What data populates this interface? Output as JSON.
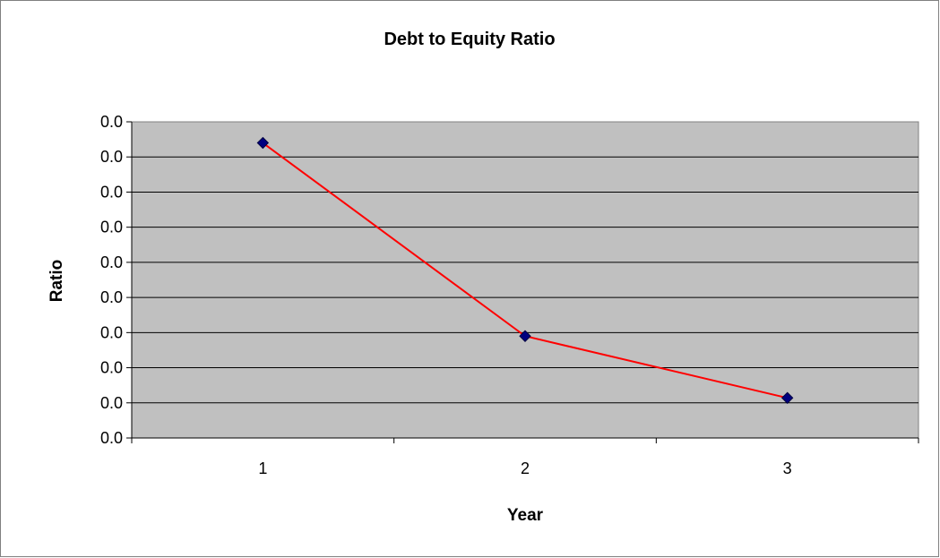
{
  "chart_data": {
    "type": "line",
    "title": "Debt to Equity Ratio",
    "xlabel": "Year",
    "ylabel": "Ratio",
    "categories": [
      "1",
      "2",
      "3"
    ],
    "series": [
      {
        "values": [
          0.042,
          0.0145,
          0.0057
        ]
      }
    ],
    "ylim": [
      0,
      0.045
    ],
    "y_tick_labels": [
      "0.0",
      "0.0",
      "0.0",
      "0.0",
      "0.0",
      "0.0",
      "0.0",
      "0.0",
      "0.0",
      "0.0"
    ],
    "grid": true,
    "legend": "none",
    "colors": {
      "plot_background": "#c0c0c0",
      "line": "#ff0000",
      "marker": "#000080",
      "gridline": "#000000"
    },
    "marker": "diamond"
  }
}
